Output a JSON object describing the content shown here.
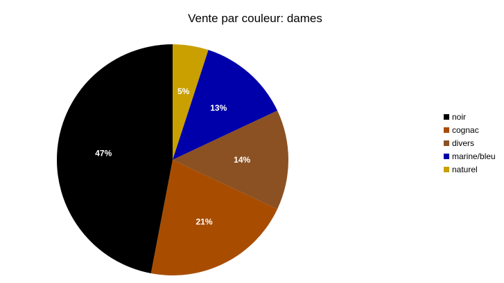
{
  "chart_data": {
    "type": "pie",
    "title": "Vente par couleur: dames",
    "categories": [
      "naturel",
      "marine/bleu",
      "divers",
      "cognac",
      "noir"
    ],
    "values": [
      5,
      13,
      14,
      21,
      47
    ],
    "data_labels": [
      "5%",
      "13%",
      "14%",
      "21%",
      "47%"
    ],
    "colors": [
      "#c9a000",
      "#0000aa",
      "#8b5123",
      "#a84d00",
      "#000000"
    ],
    "label_color": "#ffffff",
    "legend": {
      "position": "right",
      "entries": [
        {
          "label": "noir",
          "color": "#000000"
        },
        {
          "label": "cognac",
          "color": "#a84d00"
        },
        {
          "label": "divers",
          "color": "#8b5123"
        },
        {
          "label": "marine/bleu",
          "color": "#0000aa"
        },
        {
          "label": "naturel",
          "color": "#c9a000"
        }
      ]
    }
  }
}
